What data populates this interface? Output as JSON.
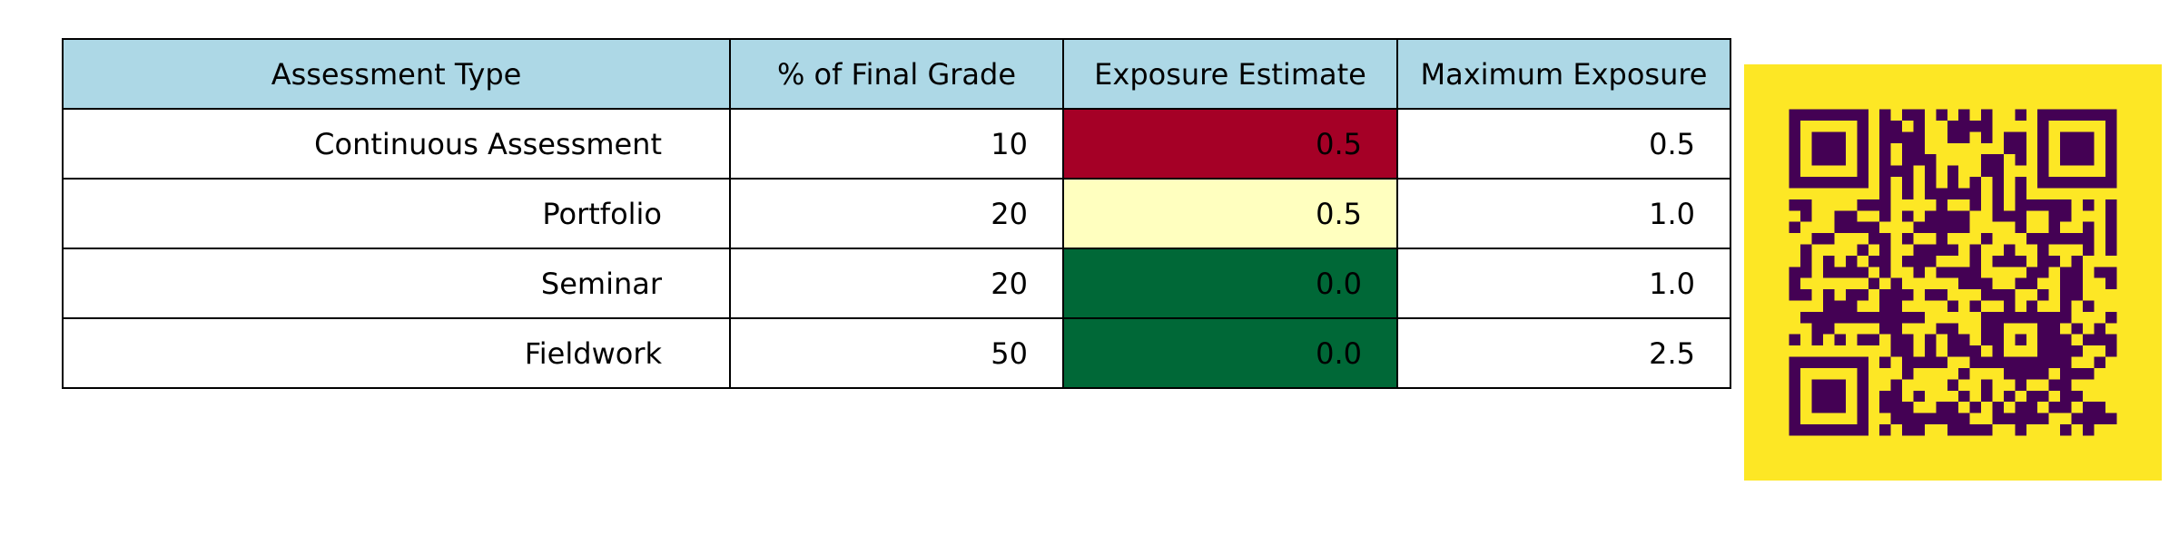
{
  "chart_data": {
    "type": "table",
    "columns": [
      "Assessment Type",
      "% of Final Grade",
      "Exposure Estimate",
      "Maximum Exposure"
    ],
    "rows": [
      [
        "Continuous Assessment",
        "10",
        "0.5",
        "0.5"
      ],
      [
        "Portfolio",
        "20",
        "0.5",
        "1.0"
      ],
      [
        "Seminar",
        "20",
        "0.0",
        "1.0"
      ],
      [
        "Fieldwork",
        "50",
        "0.0",
        "2.5"
      ]
    ],
    "exposure_ratio": [
      1.0,
      0.5,
      0.0,
      0.0
    ]
  },
  "colors": {
    "header_background": "#add8e6",
    "cell_background": "#ffffff",
    "border": "#000000",
    "text": "#000000",
    "colormap": [
      "#006837",
      "#ffffbf",
      "#a50026"
    ],
    "qr_foreground": "#440154",
    "qr_background": "#fde725"
  },
  "qr_code": {
    "icon": "qr-code-icon",
    "modules": 29
  }
}
